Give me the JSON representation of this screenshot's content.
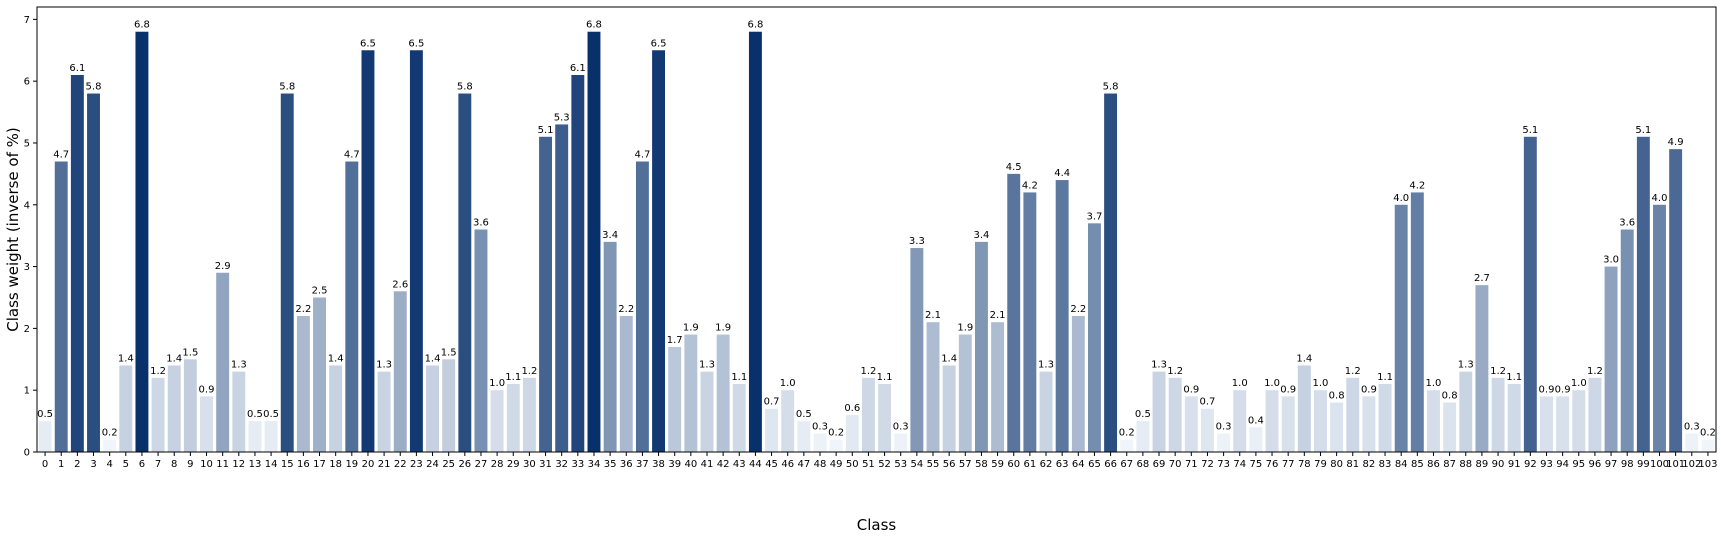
{
  "chart_data": {
    "type": "bar",
    "xlabel": "Class",
    "ylabel": "Class weight (inverse of %)",
    "ylim": [
      0,
      7.2
    ],
    "yticks": [
      0,
      1,
      2,
      3,
      4,
      5,
      6,
      7
    ],
    "grid": false,
    "legend": "none",
    "color_scale": {
      "low": "#f7fbff",
      "high": "#08306b",
      "palette": "Blues"
    },
    "categories": [
      "0",
      "1",
      "2",
      "3",
      "4",
      "5",
      "6",
      "7",
      "8",
      "9",
      "10",
      "11",
      "12",
      "13",
      "14",
      "15",
      "16",
      "17",
      "18",
      "19",
      "20",
      "21",
      "22",
      "23",
      "24",
      "25",
      "26",
      "27",
      "28",
      "29",
      "30",
      "31",
      "32",
      "33",
      "34",
      "35",
      "36",
      "37",
      "38",
      "39",
      "40",
      "41",
      "42",
      "43",
      "44",
      "45",
      "46",
      "47",
      "48",
      "49",
      "50",
      "51",
      "52",
      "53",
      "54",
      "55",
      "56",
      "57",
      "58",
      "59",
      "60",
      "61",
      "62",
      "63",
      "64",
      "65",
      "66",
      "67",
      "68",
      "69",
      "70",
      "71",
      "72",
      "73",
      "74",
      "75",
      "76",
      "77",
      "78",
      "79",
      "80",
      "81",
      "82",
      "83",
      "84",
      "85",
      "86",
      "87",
      "88",
      "89",
      "90",
      "91",
      "92",
      "93",
      "94",
      "95",
      "96",
      "97",
      "98",
      "99",
      "100",
      "101",
      "102",
      "103"
    ],
    "values": [
      0.5,
      4.7,
      6.1,
      5.8,
      0.2,
      1.4,
      6.8,
      1.2,
      1.4,
      1.5,
      0.9,
      2.9,
      1.3,
      0.5,
      0.5,
      5.8,
      2.2,
      2.5,
      1.4,
      4.7,
      6.5,
      1.3,
      2.6,
      6.5,
      1.4,
      1.5,
      5.8,
      3.6,
      1.0,
      1.1,
      1.2,
      5.1,
      5.3,
      6.1,
      6.8,
      3.4,
      2.2,
      4.7,
      6.5,
      1.7,
      1.9,
      1.3,
      1.9,
      1.1,
      6.8,
      0.7,
      1.0,
      0.5,
      0.3,
      0.2,
      0.6,
      1.2,
      1.1,
      0.3,
      3.3,
      2.1,
      1.4,
      1.9,
      3.4,
      2.1,
      4.5,
      4.2,
      1.3,
      4.4,
      2.2,
      3.7,
      5.8,
      0.2,
      0.5,
      1.3,
      1.2,
      0.9,
      0.7,
      0.3,
      1.0,
      0.4,
      1.0,
      0.9,
      1.4,
      1.0,
      0.8,
      1.2,
      0.9,
      1.1,
      4.0,
      4.2,
      1.0,
      0.8,
      1.3,
      2.7,
      1.2,
      1.1,
      5.1,
      0.9,
      0.9,
      1.0,
      1.2,
      3.0,
      3.6,
      5.1,
      4.0,
      4.9,
      0.3,
      0.2
    ],
    "bar_labels": [
      "0.5",
      "4.7",
      "6.1",
      "5.8",
      "0.2",
      "1.4",
      "6.8",
      "1.2",
      "1.4",
      "1.5",
      "0.9",
      "2.9",
      "1.3",
      "0.5",
      "0.5",
      "5.8",
      "2.2",
      "2.5",
      "1.4",
      "4.7",
      "6.5",
      "1.3",
      "2.6",
      "6.5",
      "1.4",
      "1.5",
      "5.8",
      "3.6",
      "1.0",
      "1.1",
      "1.2",
      "5.1",
      "5.3",
      "6.1",
      "6.8",
      "3.4",
      "2.2",
      "4.7",
      "6.5",
      "1.7",
      "1.9",
      "1.3",
      "1.9",
      "1.1",
      "6.8",
      "0.7",
      "1.0",
      "0.5",
      "0.3",
      "0.2",
      "0.6",
      "1.2",
      "1.1",
      "0.3",
      "3.3",
      "2.1",
      "1.4",
      "1.9",
      "3.4",
      "2.1",
      "4.5",
      "4.2",
      "1.3",
      "4.4",
      "2.2",
      "3.7",
      "5.8",
      "0.2",
      "0.5",
      "1.3",
      "1.2",
      "0.9",
      "0.7",
      "0.3",
      "1.0",
      "0.4",
      "1.0",
      "0.9",
      "1.4",
      "1.0",
      "0.8",
      "1.2",
      "0.9",
      "1.1",
      "4.0",
      "4.2",
      "1.0",
      "0.8",
      "1.3",
      "2.7",
      "1.2",
      "1.1",
      "5.1",
      "0.9",
      "0.9",
      "1.0",
      "1.2",
      "3.0",
      "3.6",
      "5.1",
      "4.0",
      "4.9",
      "0.3",
      "0.2"
    ]
  }
}
